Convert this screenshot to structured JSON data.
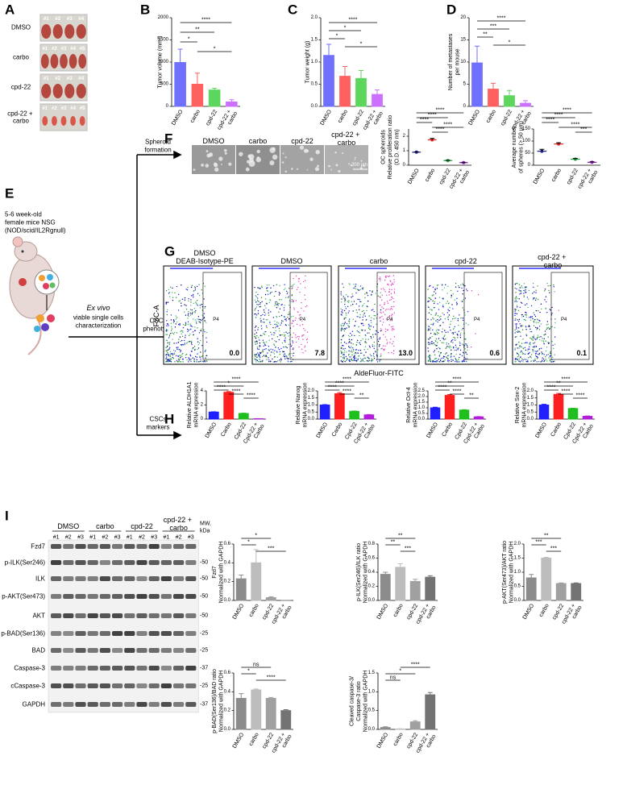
{
  "panel_labels": [
    "A",
    "B",
    "C",
    "D",
    "E",
    "F",
    "G",
    "H",
    "I"
  ],
  "panel_a": {
    "rows": [
      {
        "label": "DMSO",
        "ids": [
          "#1",
          "#2",
          "#3",
          "#4"
        ]
      },
      {
        "label": "carbo",
        "ids": [
          "#1",
          "#2",
          "#3",
          "#4",
          "#5"
        ]
      },
      {
        "label": "cpd-22",
        "ids": [
          "#1",
          "#2",
          "#3",
          "#4"
        ]
      },
      {
        "label": "cpd-22 + carbo",
        "ids": [
          "#1",
          "#2",
          "#3",
          "#4",
          "#5"
        ]
      }
    ]
  },
  "panel_e": {
    "mouse_text": [
      "5-6 week-old",
      "female mice NSG",
      "(NOD/scid/IL2Rgnull)"
    ],
    "ex_vivo": "Ex vivo",
    "ex_vivo_text": [
      "viable single cells",
      "characterization"
    ],
    "branches": [
      [
        "Spheroid",
        "formation"
      ],
      [
        "CSCs",
        "phenotype"
      ],
      [
        "CSCs",
        "markers"
      ]
    ]
  },
  "panel_f": {
    "images": [
      "DMSO",
      "carbo",
      "cpd-22",
      "cpd-22 + carbo"
    ],
    "scale_bar": "200 µm"
  },
  "panel_g": {
    "y_label": "FSC-A",
    "x_label": "AldeFluor-FITC",
    "plots": [
      {
        "title": [
          "DMSO",
          "DEAB-Isotype-PE"
        ],
        "gate": "P4",
        "percent": "0.0"
      },
      {
        "title": [
          "DMSO"
        ],
        "gate": "P4",
        "percent": "7.8"
      },
      {
        "title": [
          "carbo"
        ],
        "gate": "P4",
        "percent": "13.0"
      },
      {
        "title": [
          "cpd-22"
        ],
        "gate": "P4",
        "percent": "0.6"
      },
      {
        "title": [
          "cpd-22 + carbo"
        ],
        "gate": "P4",
        "percent": "0.1"
      }
    ]
  },
  "panel_i_blot": {
    "groups": [
      "DMSO",
      "carbo",
      "cpd-22",
      "cpd-22 + carbo"
    ],
    "lanes": [
      "#1",
      "#2",
      "#3",
      "#1",
      "#2",
      "#3",
      "#1",
      "#2",
      "#3",
      "#1",
      "#2",
      "#3"
    ],
    "mw_label": [
      "MW,",
      "kDa"
    ],
    "proteins": [
      "Fzd7",
      "p-ILK(Ser246)",
      "ILK",
      "p-AKT(Ser473)",
      "AKT",
      "p-BAD(Ser136)",
      "BAD",
      "Caspase-3",
      "cCaspase-3",
      "GAPDH"
    ],
    "mw": [
      null,
      "-50",
      "-50",
      "-50",
      "-50",
      "-25",
      "-25",
      "-37",
      "-25",
      "-37"
    ]
  },
  "chart_data": [
    {
      "type": "bar",
      "y_label": [
        "Tumor volume (mm³)"
      ],
      "categories": [
        "DMSO",
        "carbo",
        "cpd-22",
        "cpd-22 + carbo"
      ],
      "values": [
        990,
        500,
        370,
        100
      ],
      "errors": [
        300,
        250,
        40,
        50
      ],
      "colors": [
        "#7070ff",
        "#ff6060",
        "#5cd65c",
        "#cc70ff"
      ],
      "ylim": [
        0,
        2000
      ],
      "yticks": [
        0,
        500,
        1000,
        1500,
        2000
      ],
      "significance": [
        "****",
        "**",
        "*",
        "*"
      ]
    },
    {
      "type": "bar",
      "y_label": [
        "Tumor weight (g)"
      ],
      "categories": [
        "DMSO",
        "carbo",
        "cpd-22",
        "cpd-22 + carbo"
      ],
      "values": [
        1.15,
        0.68,
        0.63,
        0.27
      ],
      "errors": [
        0.25,
        0.22,
        0.18,
        0.1
      ],
      "colors": [
        "#7070ff",
        "#ff6060",
        "#5cd65c",
        "#cc70ff"
      ],
      "ylim": [
        0,
        2
      ],
      "yticks": [
        {
          "value": 0,
          "label": "0.0"
        },
        0.5,
        {
          "value": 1,
          "label": "1.0"
        },
        1.5,
        {
          "value": 2,
          "label": "2.0"
        }
      ],
      "significance": [
        "****",
        "*",
        "*",
        "*"
      ]
    },
    {
      "type": "bar",
      "y_label": [
        "Number of metastases",
        "per mouse"
      ],
      "categories": [
        "DMSO",
        "carbo",
        "cpd-22",
        "cpd-22 + carbo"
      ],
      "values": [
        9.8,
        3.9,
        2.4,
        0.7
      ],
      "errors": [
        3.8,
        1.3,
        1.2,
        0.6
      ],
      "colors": [
        "#7070ff",
        "#ff6060",
        "#5cd65c",
        "#cc70ff"
      ],
      "ylim": [
        0,
        20
      ],
      "yticks": [
        0,
        5,
        10,
        15,
        20
      ],
      "significance": [
        "****",
        "***",
        "**",
        "*"
      ]
    },
    {
      "type": "dot",
      "y_label": [
        "OC spheroids",
        "Relative proliferation ratio",
        "(O.D. 450 nm)"
      ],
      "categories": [
        "DMSO",
        "carbo",
        "cpd-22",
        "cpd-22 + carbo"
      ],
      "values": [
        0.9,
        1.75,
        0.32,
        0.18
      ],
      "errors": [
        0.02,
        0.1,
        0.02,
        0.01
      ],
      "colors": [
        "#1f1f8f",
        "#e02020",
        "#1f9f3f",
        "#8f1fbf"
      ],
      "ylim": [
        0,
        2.5
      ],
      "yticks": [
        0,
        1,
        2
      ],
      "significance": [
        "****",
        "****",
        "****",
        "****",
        "****"
      ]
    },
    {
      "type": "dot",
      "y_label": [
        "Average number",
        "of spheres (> 50 µm)"
      ],
      "categories": [
        "DMSO",
        "carbo",
        "cpd-22",
        "cpd-22 + carbo"
      ],
      "values": [
        58,
        88,
        25,
        12
      ],
      "errors": [
        8,
        5,
        3,
        2
      ],
      "colors": [
        "#1f1f8f",
        "#e02020",
        "#1f9f3f",
        "#8f1fbf"
      ],
      "ylim": [
        0,
        150
      ],
      "yticks": [
        0,
        50,
        100,
        150
      ],
      "significance": [
        "****",
        "****",
        "****",
        "****",
        "***"
      ]
    },
    {
      "type": "bar",
      "y_label": [
        "Relative ALDH1A1",
        "mRNA expression"
      ],
      "categories": [
        "DMSO",
        "Carbo",
        "Cpd-22",
        "Cpd-22 + Carbo"
      ],
      "values": [
        1.0,
        3.8,
        0.8,
        0.05
      ],
      "errors": [
        0.05,
        0.1,
        0.04,
        0.01
      ],
      "colors": [
        "#1f1fff",
        "#ff1f1f",
        "#1fbf1f",
        "#b31fd9"
      ],
      "ylim": [
        0,
        4
      ],
      "yticks": [
        0,
        2,
        4
      ],
      "significance": [
        "****",
        "*",
        "****",
        "****",
        "****"
      ]
    },
    {
      "type": "bar",
      "y_label": [
        "Relative Nanog",
        "mRNA expression"
      ],
      "categories": [
        "DMSO",
        "Carbo",
        "Cpd-22",
        "Cpd-22 + Carbo"
      ],
      "values": [
        1.0,
        1.8,
        0.55,
        0.3
      ],
      "errors": [
        0.03,
        0.08,
        0.02,
        0.02
      ],
      "colors": [
        "#1f1fff",
        "#ff1f1f",
        "#1fbf1f",
        "#b31fd9"
      ],
      "ylim": [
        0,
        2
      ],
      "yticks": [
        {
          "value": 0,
          "label": "0.0"
        },
        0.5,
        {
          "value": 1,
          "label": "1.0"
        },
        1.5,
        {
          "value": 2,
          "label": "2.0"
        }
      ],
      "significance": [
        "****",
        "****",
        "****",
        "****",
        "**"
      ]
    },
    {
      "type": "bar",
      "y_label": [
        "Relative Oct-4",
        "mRNA expression"
      ],
      "categories": [
        "DMSO",
        "Carbo",
        "Cpd-22",
        "Cpd-22 + Carbo"
      ],
      "values": [
        1.0,
        2.1,
        0.8,
        0.2
      ],
      "errors": [
        0.05,
        0.08,
        0.03,
        0.02
      ],
      "colors": [
        "#1f1fff",
        "#ff1f1f",
        "#1fbf1f",
        "#b31fd9"
      ],
      "ylim": [
        0,
        2.5
      ],
      "yticks": [
        {
          "value": 0,
          "label": "0.0"
        },
        0.5,
        {
          "value": 1,
          "label": "1.0"
        },
        1.5,
        {
          "value": 2,
          "label": "2.0"
        },
        2.5
      ],
      "significance": [
        "****",
        "**",
        "****",
        "****",
        "**"
      ]
    },
    {
      "type": "bar",
      "y_label": [
        "Relative Sox-2",
        "mRNA expression"
      ],
      "categories": [
        "DMSO",
        "Carbo",
        "Cpd-22",
        "Cpd-22 + Carbo"
      ],
      "values": [
        1.0,
        1.75,
        0.75,
        0.2
      ],
      "errors": [
        0.05,
        0.07,
        0.02,
        0.02
      ],
      "colors": [
        "#1f1fff",
        "#ff1f1f",
        "#1fbf1f",
        "#b31fd9"
      ],
      "ylim": [
        0,
        2
      ],
      "yticks": [
        {
          "value": 0,
          "label": "0.0"
        },
        0.5,
        {
          "value": 1,
          "label": "1.0"
        },
        1.5,
        {
          "value": 2,
          "label": "2.0"
        }
      ],
      "significance": [
        "****",
        "**",
        "****",
        "****",
        "****"
      ]
    },
    {
      "type": "bar",
      "y_label": [
        "Fzd7",
        "Normalized with GAPDH"
      ],
      "categories": [
        "DMSO",
        "carbo",
        "cpd-22",
        "cpd-22 + carbo"
      ],
      "values": [
        0.23,
        0.4,
        0.03,
        0.0
      ],
      "errors": [
        0.04,
        0.14,
        0.01,
        0.0
      ],
      "colors": [
        "#8c8c8c",
        "#bdbdbd",
        "#a0a0a0",
        "#737373"
      ],
      "ylim": [
        0,
        0.6
      ],
      "yticks": [
        {
          "value": 0,
          "label": "0.0"
        },
        0.2,
        0.4,
        0.6
      ],
      "significance": [
        "*",
        "*",
        "***"
      ]
    },
    {
      "type": "bar",
      "y_label": [
        "p-ILK(Ser246)/ILK ratio",
        "Normalized with GAPDH"
      ],
      "categories": [
        "DMSO",
        "carbo",
        "cpd-22",
        "cpd-22 + carbo"
      ],
      "values": [
        0.37,
        0.47,
        0.27,
        0.33
      ],
      "errors": [
        0.03,
        0.05,
        0.03,
        0.02
      ],
      "colors": [
        "#8c8c8c",
        "#bdbdbd",
        "#a0a0a0",
        "#737373"
      ],
      "ylim": [
        0,
        0.8
      ],
      "yticks": [
        {
          "value": 0,
          "label": "0.0"
        },
        0.2,
        0.4,
        0.6,
        0.8
      ],
      "significance": [
        "**",
        "**",
        "***"
      ]
    },
    {
      "type": "bar",
      "y_label": [
        "p-AKT(Ser473)/AKT ratio",
        "Normalized with GAPDH"
      ],
      "categories": [
        "DMSO",
        "carbo",
        "cpd-22",
        "cpd-22 + carbo"
      ],
      "values": [
        0.8,
        1.5,
        0.6,
        0.6
      ],
      "errors": [
        0.12,
        0.03,
        0.02,
        0.02
      ],
      "colors": [
        "#8c8c8c",
        "#bdbdbd",
        "#a0a0a0",
        "#737373"
      ],
      "ylim": [
        0,
        2
      ],
      "yticks": [
        {
          "value": 0,
          "label": "0.0"
        },
        0.5,
        {
          "value": 1,
          "label": "1.0"
        },
        1.5,
        {
          "value": 2,
          "label": "2.0"
        }
      ],
      "significance": [
        "**",
        "***",
        "***"
      ]
    },
    {
      "type": "bar",
      "y_label": [
        "p-BAD(Ser136)/BAD ratio",
        "Normalized with GAPDH"
      ],
      "categories": [
        "DMSO",
        "carbo",
        "cpd-22",
        "cpd-22 + carbo"
      ],
      "values": [
        0.33,
        0.42,
        0.33,
        0.2
      ],
      "errors": [
        0.05,
        0.01,
        0.01,
        0.01
      ],
      "colors": [
        "#8c8c8c",
        "#bdbdbd",
        "#a0a0a0",
        "#737373"
      ],
      "ylim": [
        0,
        0.6
      ],
      "yticks": [
        {
          "value": 0,
          "label": "0.0"
        },
        0.2,
        0.4,
        0.6
      ],
      "significance": [
        "ns",
        "*",
        "****"
      ]
    },
    {
      "type": "bar",
      "y_label": [
        "Cleaved caspase-3/",
        "Caspase-3 ratio",
        "Normalized with GAPDH"
      ],
      "categories": [
        "DMSO",
        "carbo",
        "cpd-22",
        "cpd-22 + carbo"
      ],
      "values": [
        0.05,
        0.01,
        0.2,
        0.92
      ],
      "errors": [
        0.02,
        0.005,
        0.03,
        0.06
      ],
      "colors": [
        "#8c8c8c",
        "#bdbdbd",
        "#a0a0a0",
        "#737373"
      ],
      "ylim": [
        0,
        1.5
      ],
      "yticks": [
        {
          "value": 0,
          "label": "0.0"
        },
        0.5,
        {
          "value": 1,
          "label": "1.0"
        },
        1.5
      ],
      "significance": [
        "****",
        "*",
        "ns"
      ]
    }
  ]
}
